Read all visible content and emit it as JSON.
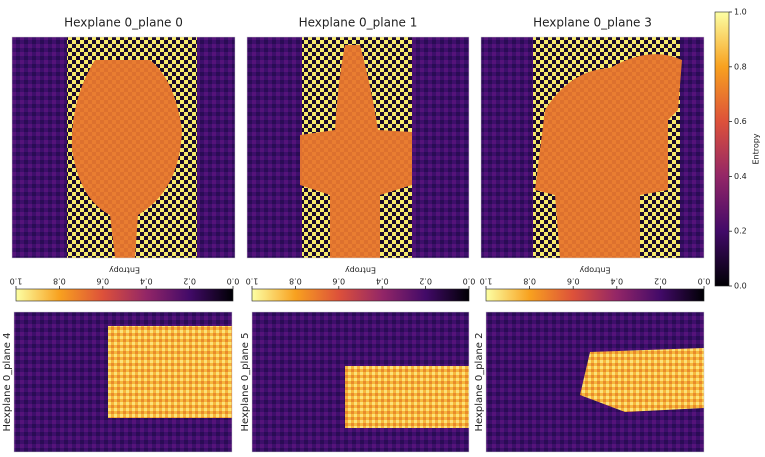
{
  "chart_data": [
    {
      "type": "heatmap",
      "title": "Hexplane 0_plane 0"
    },
    {
      "type": "heatmap",
      "title": "Hexplane 0_plane 1"
    },
    {
      "type": "heatmap",
      "title": "Hexplane 0_plane 3"
    },
    {
      "type": "heatmap",
      "ylabel": "Hexplane 0_plane 4"
    },
    {
      "type": "heatmap",
      "ylabel": "Hexplane 0_plane 5"
    },
    {
      "type": "heatmap",
      "ylabel": "Hexplane 0_plane 2"
    },
    {
      "type": "colorbar",
      "orientation": "horizontal",
      "label": "Entropy",
      "xlim": [
        1,
        0
      ],
      "xticks": [
        {
          "value": 1,
          "label": "1.0"
        },
        0.8,
        0.6,
        0.4,
        0.2,
        {
          "value": 0,
          "label": "0.0"
        }
      ]
    },
    {
      "type": "colorbar",
      "orientation": "horizontal",
      "label": "Entropy",
      "xlim": [
        1,
        0
      ],
      "xticks": [
        {
          "value": 1,
          "label": "1.0"
        },
        0.8,
        0.6,
        0.4,
        0.2,
        {
          "value": 0,
          "label": "0.0"
        }
      ]
    },
    {
      "type": "colorbar",
      "orientation": "horizontal",
      "label": "Entropy",
      "xlim": [
        1,
        0
      ],
      "xticks": [
        {
          "value": 1,
          "label": "1.0"
        },
        0.8,
        0.6,
        0.4,
        0.2,
        {
          "value": 0,
          "label": "0.0"
        }
      ]
    },
    {
      "type": "colorbar",
      "orientation": "vertical",
      "label": "Entropy",
      "ylim": [
        0,
        1
      ],
      "yticks": [
        {
          "value": 0,
          "label": "0.0"
        },
        0.2,
        0.4,
        0.6,
        0.8,
        {
          "value": 1,
          "label": "1.0"
        }
      ]
    }
  ]
}
